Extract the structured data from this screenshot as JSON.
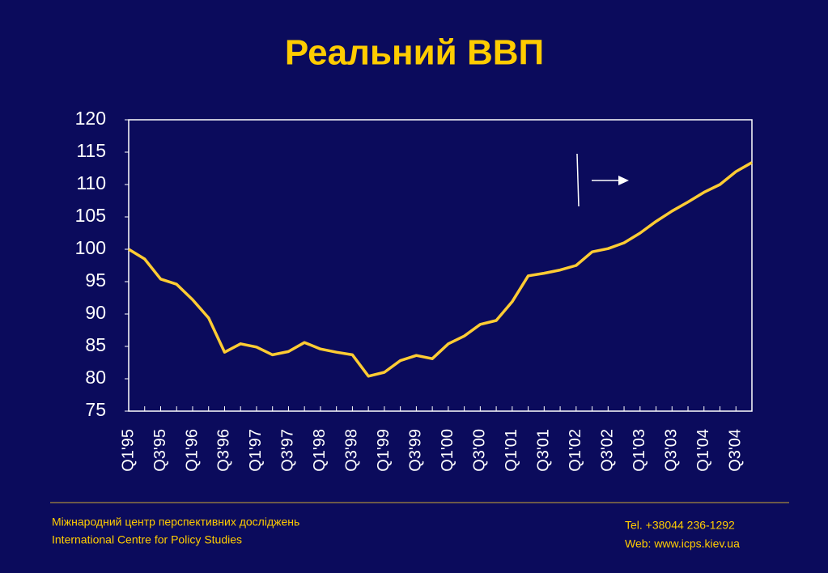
{
  "chart_data": {
    "type": "line",
    "title": "Реальний ВВП",
    "categories": [
      "Q1'95",
      null,
      "Q3'95",
      null,
      "Q1'96",
      null,
      "Q3'96",
      null,
      "Q1'97",
      null,
      "Q3'97",
      null,
      "Q1'98",
      null,
      "Q3'98",
      null,
      "Q1'99",
      null,
      "Q3'99",
      null,
      "Q1'00",
      null,
      "Q3'00",
      null,
      "Q1'01",
      null,
      "Q3'01",
      null,
      "Q1'02",
      null,
      "Q3'02",
      null,
      "Q1'03",
      null,
      "Q3'03",
      null,
      "Q1'04",
      null,
      "Q3'04",
      null
    ],
    "values": [
      100,
      98.5,
      95.4,
      94.6,
      92.2,
      89.4,
      84.1,
      85.4,
      84.9,
      83.7,
      84.2,
      85.6,
      84.6,
      84.1,
      83.7,
      80.4,
      81.0,
      82.8,
      83.6,
      83.1,
      85.4,
      86.6,
      88.4,
      89.0,
      91.9,
      95.9,
      96.3,
      96.8,
      97.5,
      99.6,
      100.1,
      101.0,
      102.5,
      104.3,
      105.9,
      107.3,
      108.8,
      110.0,
      112.0,
      113.4
    ],
    "color": "#ffcc33",
    "ylim": [
      75,
      120
    ],
    "yticks": [
      75,
      80,
      85,
      90,
      95,
      100,
      105,
      110,
      115,
      120
    ],
    "grid": false
  },
  "footer": {
    "org_ua": "Міжнародний центр перспективних досліджень",
    "org_en": "International Centre for Policy Studies",
    "tel": "Tel. +38044 236-1292",
    "web": "Web: www.icps.kiev.ua"
  }
}
